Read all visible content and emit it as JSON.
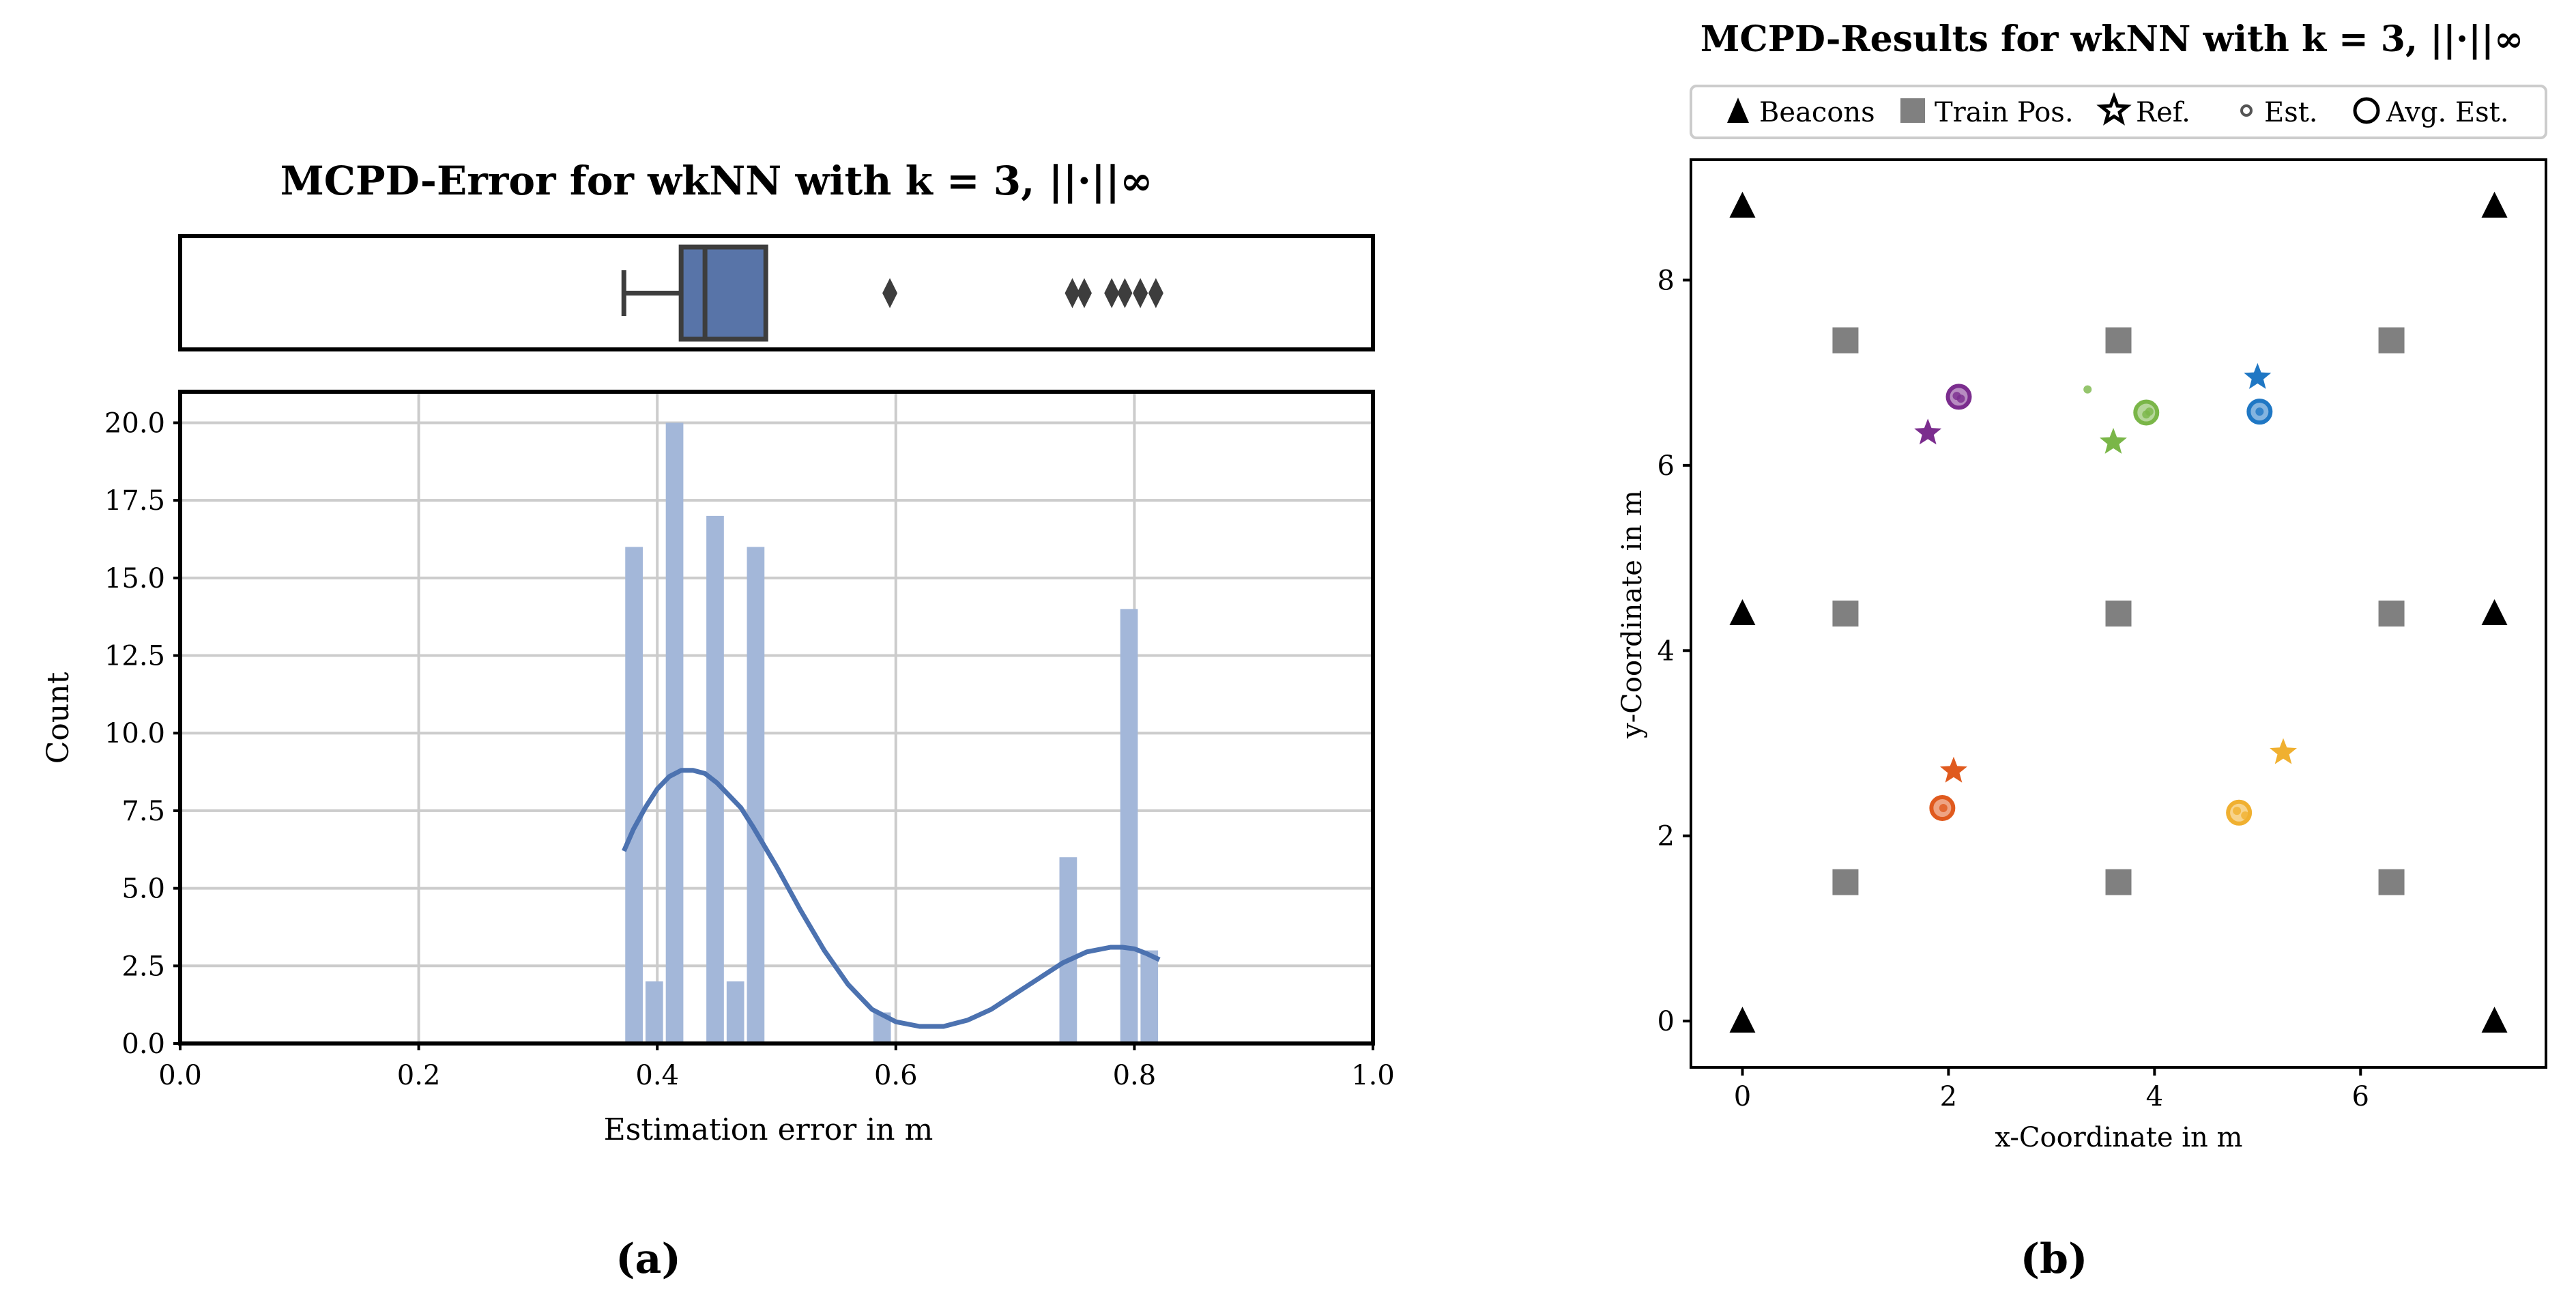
{
  "chart_data": [
    {
      "id": "a",
      "type": "bar",
      "title": "MCPD-Error for wkNN with k = 3, ||·||∞",
      "xlabel": "Estimation error in m",
      "ylabel": "Count",
      "xlim": [
        0.0,
        1.0
      ],
      "ylim": [
        0,
        21
      ],
      "xticks": [
        "0.0",
        "0.2",
        "0.4",
        "0.6",
        "0.8",
        "1.0"
      ],
      "xtick_values": [
        0.0,
        0.2,
        0.4,
        0.6,
        0.8,
        1.0
      ],
      "yticks": [
        "0.0",
        "2.5",
        "5.0",
        "7.5",
        "10.0",
        "12.5",
        "15.0",
        "17.5",
        "20.0"
      ],
      "ytick_values": [
        0.0,
        2.5,
        5.0,
        7.5,
        10.0,
        12.5,
        15.0,
        17.5,
        20.0
      ],
      "grid": true,
      "bar_color": "#a3b7d9",
      "kde_color": "#4c72b0",
      "bins": [
        {
          "x0": 0.372,
          "x1": 0.389,
          "count": 16
        },
        {
          "x0": 0.389,
          "x1": 0.406,
          "count": 2
        },
        {
          "x0": 0.406,
          "x1": 0.423,
          "count": 20
        },
        {
          "x0": 0.423,
          "x1": 0.44,
          "count": 0
        },
        {
          "x0": 0.44,
          "x1": 0.457,
          "count": 17
        },
        {
          "x0": 0.457,
          "x1": 0.474,
          "count": 2
        },
        {
          "x0": 0.474,
          "x1": 0.491,
          "count": 16
        },
        {
          "x0": 0.58,
          "x1": 0.597,
          "count": 1
        },
        {
          "x0": 0.736,
          "x1": 0.753,
          "count": 6
        },
        {
          "x0": 0.787,
          "x1": 0.804,
          "count": 14
        },
        {
          "x0": 0.804,
          "x1": 0.821,
          "count": 3
        }
      ],
      "kde": {
        "x": [
          0.372,
          0.38,
          0.39,
          0.4,
          0.41,
          0.42,
          0.43,
          0.44,
          0.45,
          0.46,
          0.47,
          0.48,
          0.5,
          0.52,
          0.54,
          0.56,
          0.58,
          0.6,
          0.62,
          0.64,
          0.66,
          0.68,
          0.7,
          0.72,
          0.74,
          0.76,
          0.78,
          0.79,
          0.8,
          0.81,
          0.821
        ],
        "y": [
          6.2,
          6.9,
          7.6,
          8.2,
          8.6,
          8.8,
          8.8,
          8.7,
          8.4,
          8.0,
          7.6,
          7.0,
          5.7,
          4.3,
          3.0,
          1.9,
          1.1,
          0.7,
          0.55,
          0.55,
          0.75,
          1.1,
          1.6,
          2.1,
          2.6,
          2.95,
          3.1,
          3.1,
          3.05,
          2.9,
          2.7
        ]
      },
      "boxplot": {
        "whisker_low": 0.372,
        "q1": 0.42,
        "median": 0.44,
        "q3": 0.491,
        "whisker_high": 0.491,
        "outliers": [
          0.595,
          0.748,
          0.758,
          0.781,
          0.792,
          0.805,
          0.818
        ],
        "color": "#5874a8"
      },
      "caption": "(a)"
    },
    {
      "id": "b",
      "type": "scatter",
      "title": "MCPD-Results for wkNN with k = 3, ||·||∞",
      "xlabel": "x-Coordinate in m",
      "ylabel": "y-Coordinate in m",
      "xlim": [
        -0.5,
        7.8
      ],
      "ylim": [
        -0.5,
        9.3
      ],
      "xticks": [
        "0",
        "2",
        "4",
        "6"
      ],
      "xtick_values": [
        0,
        2,
        4,
        6
      ],
      "yticks": [
        "0",
        "2",
        "4",
        "6",
        "8"
      ],
      "ytick_values": [
        0,
        2,
        4,
        6,
        8
      ],
      "legend_location": "top",
      "legend": [
        "Beacons",
        "Train Pos.",
        "Ref.",
        "Est.",
        "Avg. Est."
      ],
      "beacons": [
        [
          0,
          0
        ],
        [
          7.3,
          0
        ],
        [
          0,
          4.4
        ],
        [
          7.3,
          4.4
        ],
        [
          0,
          8.8
        ],
        [
          7.3,
          8.8
        ]
      ],
      "train_positions": [
        [
          1,
          1.5
        ],
        [
          3.65,
          1.5
        ],
        [
          6.3,
          1.5
        ],
        [
          1,
          4.4
        ],
        [
          3.65,
          4.4
        ],
        [
          6.3,
          4.4
        ],
        [
          1,
          7.35
        ],
        [
          3.65,
          7.35
        ],
        [
          6.3,
          7.35
        ]
      ],
      "groups": [
        {
          "color": "#7b2d8e",
          "ref": [
            1.8,
            6.35
          ],
          "est": [
            [
              2.08,
              6.75
            ],
            [
              2.12,
              6.72
            ]
          ],
          "avg": [
            2.1,
            6.74
          ]
        },
        {
          "color": "#7ab648",
          "ref": [
            3.6,
            6.25
          ],
          "est": [
            [
              3.35,
              6.82
            ],
            [
              3.92,
              6.55
            ],
            [
              3.95,
              6.58
            ]
          ],
          "avg": [
            3.92,
            6.57
          ]
        },
        {
          "color": "#1f77c4",
          "ref": [
            5.0,
            6.95
          ],
          "est": [
            [
              5.02,
              6.58
            ]
          ],
          "avg": [
            5.02,
            6.58
          ]
        },
        {
          "color": "#e05a1e",
          "ref": [
            2.05,
            2.7
          ],
          "est": [
            [
              1.95,
              2.3
            ]
          ],
          "avg": [
            1.94,
            2.3
          ]
        },
        {
          "color": "#f0b030",
          "ref": [
            5.25,
            2.9
          ],
          "est": [
            [
              4.8,
              2.27
            ],
            [
              4.88,
              2.22
            ]
          ],
          "avg": [
            4.82,
            2.25
          ]
        }
      ],
      "caption": "(b)"
    }
  ]
}
